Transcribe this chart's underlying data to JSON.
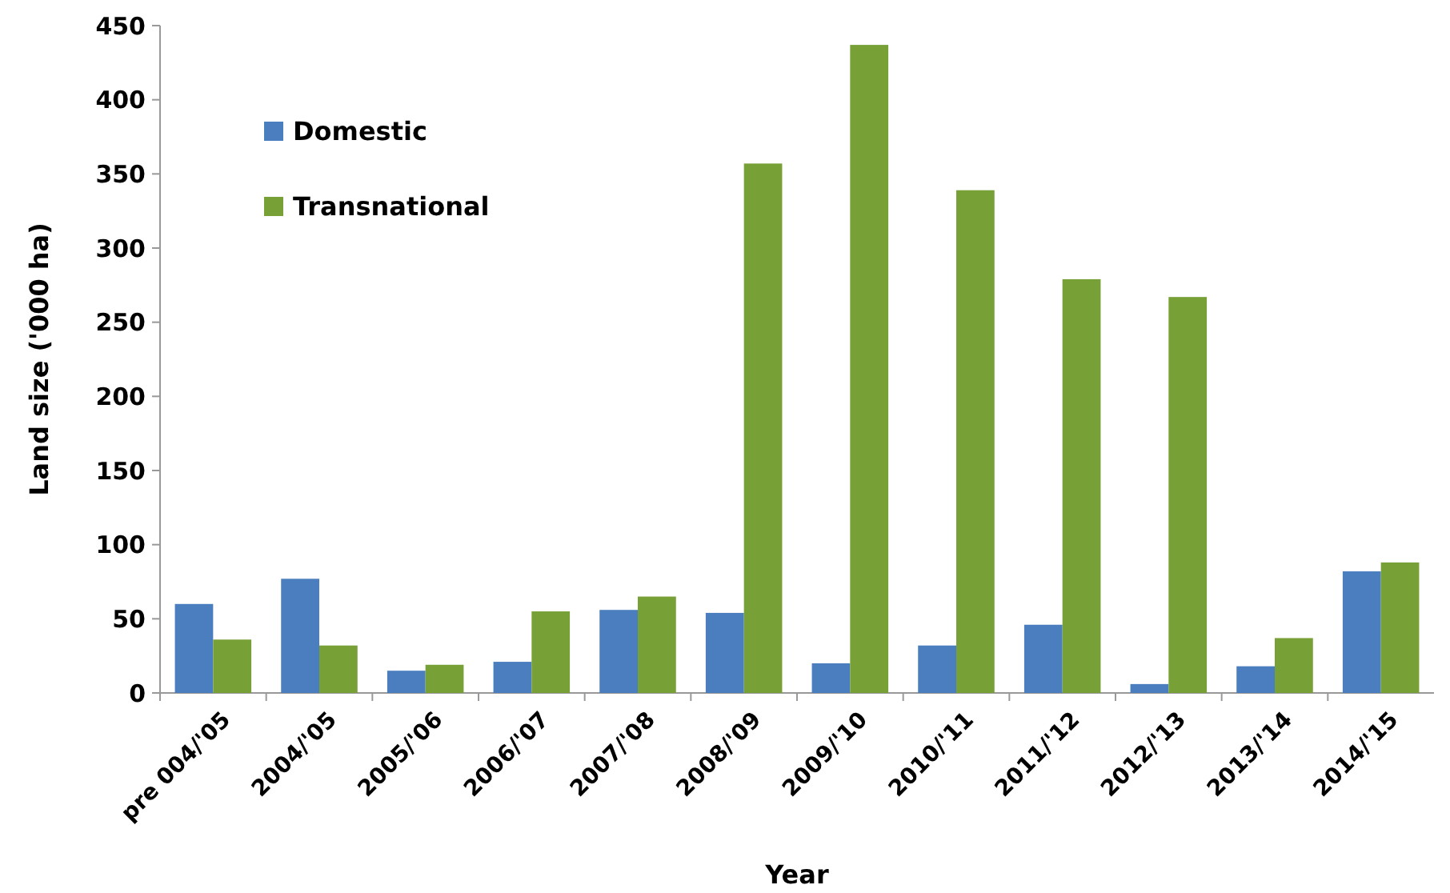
{
  "chart_data": {
    "type": "bar",
    "xlabel": "Year",
    "ylabel": "Land size ('000 ha)",
    "categories": [
      "pre 004/'05",
      "2004/'05",
      "2005/'06",
      "2006/'07",
      "2007/'08",
      "2008/'09",
      "2009/'10",
      "2010/'11",
      "2011/'12",
      "2012/'13",
      "2013/'14",
      "2014/'15"
    ],
    "series": [
      {
        "name": "Domestic",
        "color": "#4a7ebf",
        "values": [
          60,
          77,
          15,
          21,
          56,
          54,
          20,
          32,
          46,
          6,
          18,
          82
        ]
      },
      {
        "name": "Transnational",
        "color": "#77a037",
        "values": [
          36,
          32,
          19,
          55,
          65,
          357,
          437,
          339,
          279,
          267,
          37,
          88
        ]
      }
    ],
    "ylim": [
      0,
      450
    ],
    "yticks": [
      0,
      50,
      100,
      150,
      200,
      250,
      300,
      350,
      400,
      450
    ],
    "grid": false,
    "legend": "top left"
  }
}
